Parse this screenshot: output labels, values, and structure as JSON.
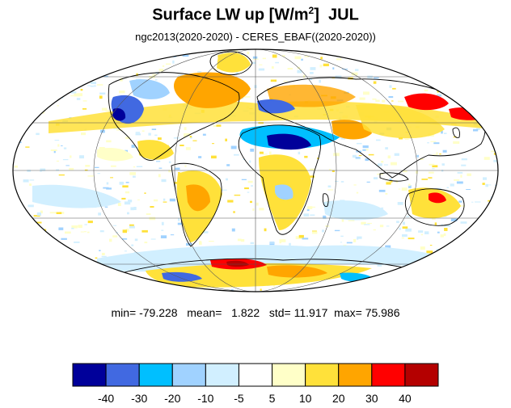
{
  "title": {
    "main": "Surface LW up [W/m",
    "superscript": "2",
    "close": "]",
    "month": "JUL"
  },
  "subtitle": "ngc2013(2020-2020) - CERES_EBAF((2020-2020))",
  "stats": {
    "min_label": "min=",
    "min": "-79.228",
    "mean_label": "mean=",
    "mean": "1.822",
    "std_label": "std=",
    "std": "11.917",
    "max_label": "max=",
    "max": "75.986"
  },
  "colorbar": {
    "colors": [
      "#00009a",
      "#4169e1",
      "#00bfff",
      "#a0d2ff",
      "#d1efff",
      "#ffffff",
      "#ffffc8",
      "#ffe13a",
      "#ffa500",
      "#ff0000",
      "#b40000"
    ],
    "labels": [
      "-40",
      "-30",
      "-20",
      "-10",
      "-5",
      "5",
      "10",
      "20",
      "30",
      "40"
    ]
  },
  "map": {
    "projection": "Mollweide",
    "ocean_color": "#ffffff",
    "grid": true
  }
}
